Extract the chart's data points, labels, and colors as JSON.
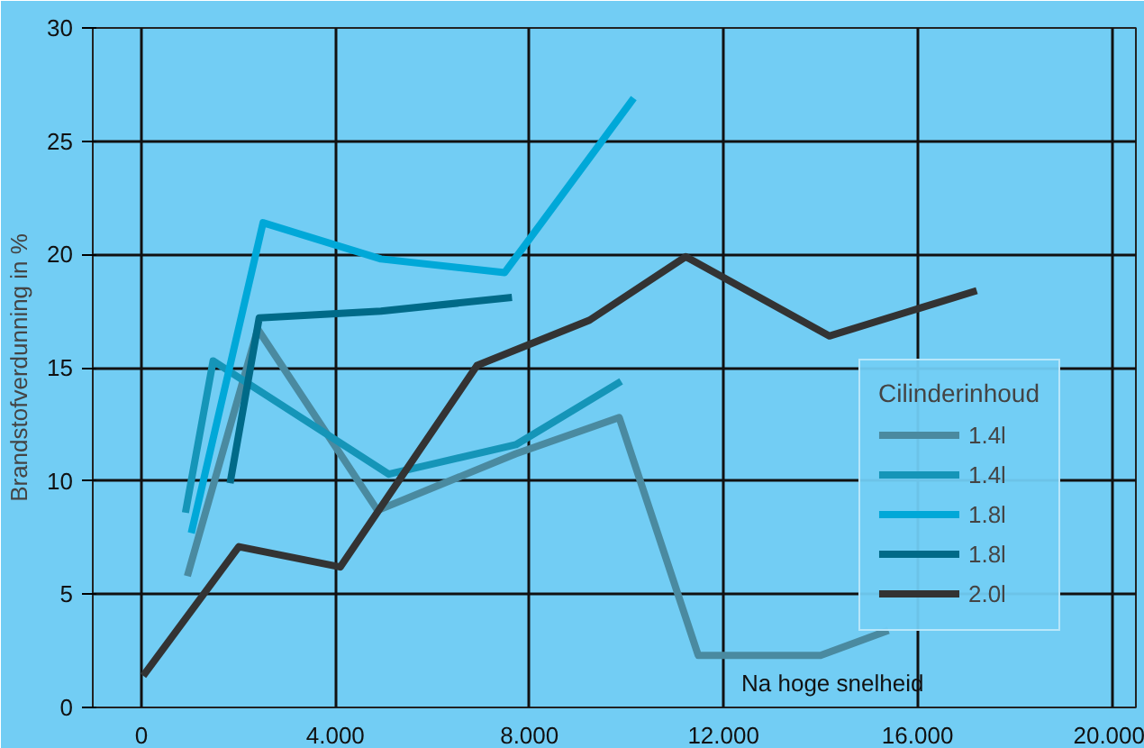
{
  "chart_data": {
    "type": "line",
    "ylabel": "Brandstofverdunning in %",
    "legend_title": "Cilinderinhoud",
    "xlim": [
      -1,
      20.5
    ],
    "ylim": [
      0,
      30
    ],
    "xticks": [
      {
        "value": 0,
        "label": "0"
      },
      {
        "value": 4,
        "label": "4.000"
      },
      {
        "value": 8,
        "label": "8.000"
      },
      {
        "value": 12,
        "label": "12.000"
      },
      {
        "value": 16,
        "label": "16.000"
      },
      {
        "value": 20,
        "label": "20.000"
      }
    ],
    "yticks": [
      0,
      5,
      10,
      15,
      20,
      25,
      30
    ],
    "grid": true,
    "legend": "bottom right",
    "line_style": "solid",
    "marker": "none",
    "series": [
      {
        "name": "1.4l",
        "color": "#4a8aa0",
        "x": [
          0.95,
          2.4,
          4.87,
          7.72,
          9.85,
          11.48,
          14.0,
          15.4
        ],
        "values": [
          5.8,
          16.7,
          8.7,
          11.2,
          12.8,
          2.3,
          2.3,
          3.4
        ]
      },
      {
        "name": "1.4l",
        "color": "#1595b8",
        "x": [
          0.91,
          1.48,
          5.1,
          7.72,
          9.89
        ],
        "values": [
          8.6,
          15.3,
          10.3,
          11.6,
          14.4
        ]
      },
      {
        "name": "1.8l",
        "color": "#00a8d8",
        "x": [
          1.03,
          2.51,
          4.94,
          7.49,
          10.15
        ],
        "values": [
          7.7,
          21.4,
          19.8,
          19.2,
          26.9
        ]
      },
      {
        "name": "1.8l",
        "color": "#006a88",
        "x": [
          1.83,
          2.43,
          4.94,
          7.64
        ],
        "values": [
          9.9,
          17.2,
          17.5,
          18.1
        ]
      },
      {
        "name": "2.0l",
        "color": "#333333",
        "x": [
          0.04,
          2.01,
          4.1,
          6.92,
          9.24,
          11.22,
          14.18,
          17.22
        ],
        "values": [
          1.4,
          7.1,
          6.2,
          15.1,
          17.1,
          19.9,
          16.4,
          18.4
        ]
      }
    ],
    "annotations": [
      "Na hoge snelheid"
    ]
  }
}
